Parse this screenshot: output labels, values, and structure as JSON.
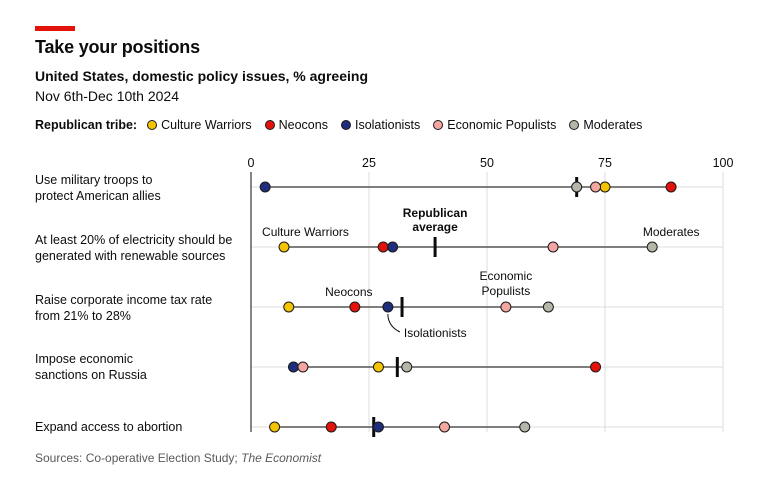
{
  "header": {
    "title": "Take your positions",
    "subtitle": "United States, domestic policy issues, % agreeing",
    "dates": "Nov 6th-Dec 10th 2024"
  },
  "legend": {
    "title": "Republican tribe:",
    "items": [
      {
        "label": "Culture Warriors",
        "color": "#f5c400"
      },
      {
        "label": "Neocons",
        "color": "#e3120b"
      },
      {
        "label": "Isolationists",
        "color": "#1f2e7a"
      },
      {
        "label": "Economic Populists",
        "color": "#f4a6a0"
      },
      {
        "label": "Moderates",
        "color": "#b5b5a8"
      }
    ]
  },
  "source": {
    "text": "Sources: Co-operative Election Study; ",
    "italic": "The Economist"
  },
  "chart_data": {
    "type": "dot-range",
    "xlim": [
      0,
      100
    ],
    "x_ticks": [
      0,
      25,
      50,
      75,
      100
    ],
    "grid": true,
    "legend_position": "top",
    "series": [
      "Culture Warriors",
      "Neocons",
      "Isolationists",
      "Economic Populists",
      "Moderates"
    ],
    "rows": [
      {
        "label": [
          "Use military troops to",
          "protect American allies"
        ],
        "average": 69,
        "values": {
          "Culture Warriors": 75,
          "Neocons": 89,
          "Isolationists": 3,
          "Economic Populists": 73,
          "Moderates": 69
        }
      },
      {
        "label": [
          "At least 20% of electricity should be",
          "generated with renewable sources"
        ],
        "average": 39,
        "values": {
          "Culture Warriors": 7,
          "Neocons": 28,
          "Isolationists": 30,
          "Economic Populists": 64,
          "Moderates": 85
        }
      },
      {
        "label": [
          "Raise corporate income tax rate",
          "from 21% to 28%"
        ],
        "average": 32,
        "values": {
          "Culture Warriors": 8,
          "Neocons": 22,
          "Isolationists": 29,
          "Economic Populists": 54,
          "Moderates": 63
        }
      },
      {
        "label": [
          "Impose economic",
          "sanctions on Russia"
        ],
        "average": 31,
        "values": {
          "Culture Warriors": 27,
          "Neocons": 73,
          "Isolationists": 9,
          "Economic Populists": 11,
          "Moderates": 33
        }
      },
      {
        "label": [
          "Expand access to abortion"
        ],
        "average": 26,
        "values": {
          "Culture Warriors": 5,
          "Neocons": 17,
          "Isolationists": 27,
          "Economic Populists": 41,
          "Moderates": 58
        }
      }
    ],
    "annotations": {
      "republican_average": [
        "Republican",
        "average"
      ],
      "culture_warriors": "Culture Warriors",
      "moderates": "Moderates",
      "neocons": "Neocons",
      "economic_populists": [
        "Economic",
        "Populists"
      ],
      "isolationists": "Isolationists"
    }
  }
}
